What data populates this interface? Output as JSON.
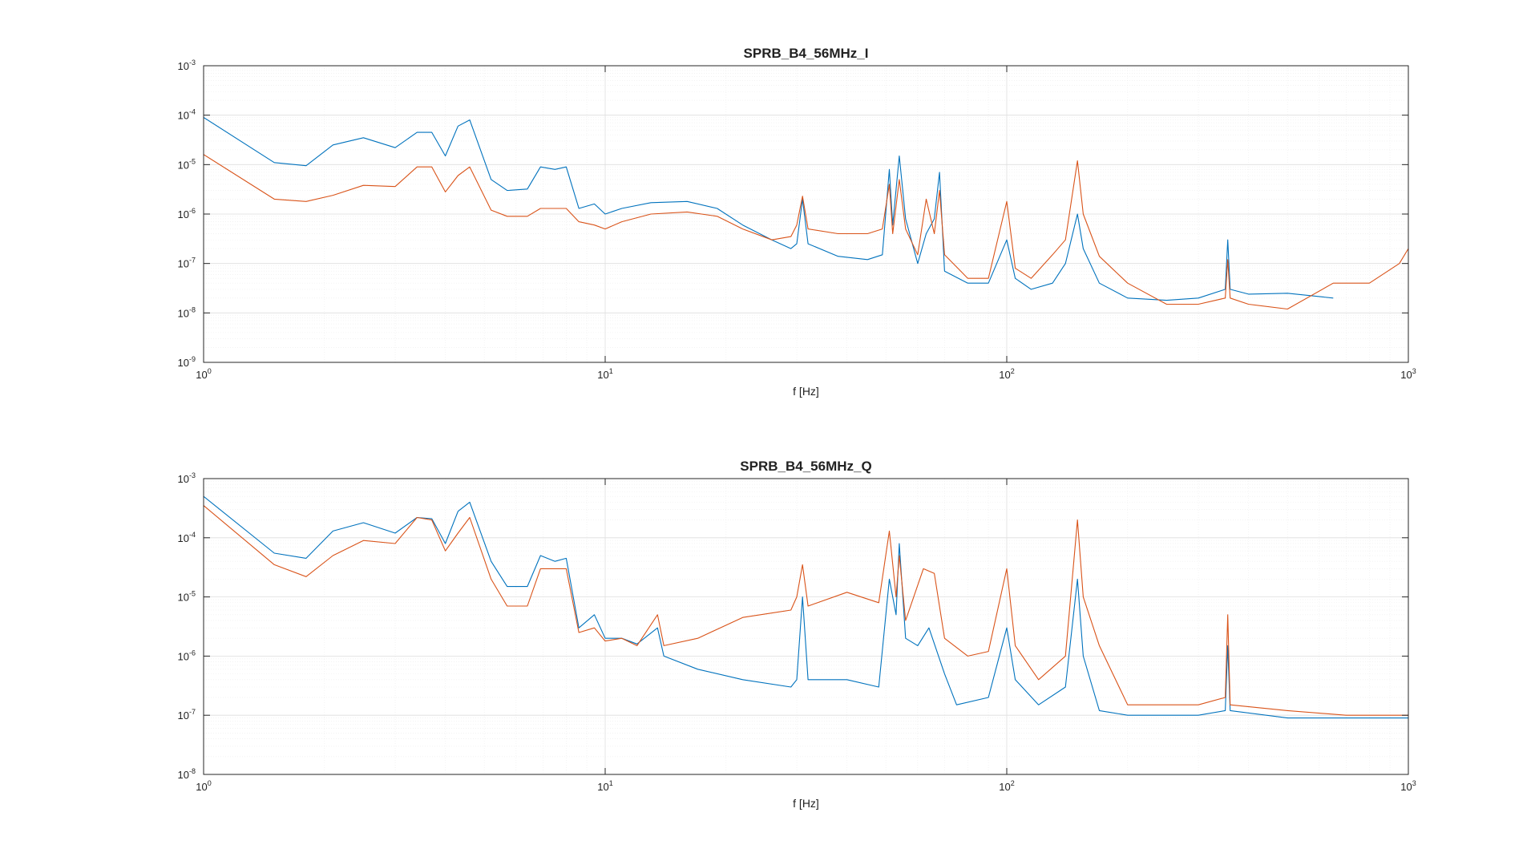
{
  "chart_data": [
    {
      "type": "line",
      "title": "SPRB_B4_56MHz_I",
      "xlabel": "f [Hz]",
      "ylabel": "",
      "xscale": "log",
      "yscale": "log",
      "xlim": [
        1,
        1000
      ],
      "ylim": [
        1e-09,
        0.001
      ],
      "grid": "on",
      "x_ticks": [
        {
          "base": "10",
          "exp": "0"
        },
        {
          "base": "10",
          "exp": "1"
        },
        {
          "base": "10",
          "exp": "2"
        },
        {
          "base": "10",
          "exp": "3"
        }
      ],
      "y_ticks": [
        {
          "base": "10",
          "exp": "-9"
        },
        {
          "base": "10",
          "exp": "-8"
        },
        {
          "base": "10",
          "exp": "-7"
        },
        {
          "base": "10",
          "exp": "-6"
        },
        {
          "base": "10",
          "exp": "-5"
        },
        {
          "base": "10",
          "exp": "-4"
        },
        {
          "base": "10",
          "exp": "-3"
        }
      ],
      "series": [
        {
          "color": "#0072bd",
          "points": [
            [
              1,
              9e-05
            ],
            [
              1.5,
              1.1e-05
            ],
            [
              1.8,
              9.5e-06
            ],
            [
              2.1,
              2.5e-05
            ],
            [
              2.5,
              3.5e-05
            ],
            [
              3,
              2.2e-05
            ],
            [
              3.4,
              4.5e-05
            ],
            [
              3.7,
              4.5e-05
            ],
            [
              4,
              1.5e-05
            ],
            [
              4.3,
              6e-05
            ],
            [
              4.6,
              8e-05
            ],
            [
              5.2,
              5e-06
            ],
            [
              5.7,
              3e-06
            ],
            [
              6.4,
              3.2e-06
            ],
            [
              6.9,
              9e-06
            ],
            [
              7.5,
              8e-06
            ],
            [
              8,
              9e-06
            ],
            [
              8.6,
              1.3e-06
            ],
            [
              9.4,
              1.6e-06
            ],
            [
              10,
              1e-06
            ],
            [
              11,
              1.3e-06
            ],
            [
              13,
              1.7e-06
            ],
            [
              16,
              1.8e-06
            ],
            [
              19,
              1.3e-06
            ],
            [
              22,
              6e-07
            ],
            [
              26,
              3e-07
            ],
            [
              29,
              2e-07
            ],
            [
              30,
              2.5e-07
            ],
            [
              31,
              2e-06
            ],
            [
              32,
              2.5e-07
            ],
            [
              38,
              1.4e-07
            ],
            [
              45,
              1.2e-07
            ],
            [
              49,
              1.5e-07
            ],
            [
              51,
              8e-06
            ],
            [
              52,
              6e-07
            ],
            [
              54,
              1.5e-05
            ],
            [
              56,
              8e-07
            ],
            [
              60,
              1e-07
            ],
            [
              63,
              4e-07
            ],
            [
              66,
              8e-07
            ],
            [
              68,
              7e-06
            ],
            [
              70,
              7e-08
            ],
            [
              80,
              4e-08
            ],
            [
              90,
              4e-08
            ],
            [
              100,
              3e-07
            ],
            [
              105,
              5e-08
            ],
            [
              115,
              3e-08
            ],
            [
              130,
              4e-08
            ],
            [
              140,
              1e-07
            ],
            [
              150,
              1e-06
            ],
            [
              155,
              2e-07
            ],
            [
              170,
              4e-08
            ],
            [
              200,
              2e-08
            ],
            [
              250,
              1.8e-08
            ],
            [
              300,
              2e-08
            ],
            [
              350,
              3e-08
            ],
            [
              355,
              3e-07
            ],
            [
              360,
              3e-08
            ],
            [
              400,
              2.4e-08
            ],
            [
              500,
              2.5e-08
            ],
            [
              650,
              2e-08
            ]
          ]
        },
        {
          "color": "#d95319",
          "points": [
            [
              1,
              1.6e-05
            ],
            [
              1.5,
              2e-06
            ],
            [
              1.8,
              1.8e-06
            ],
            [
              2.1,
              2.4e-06
            ],
            [
              2.5,
              3.8e-06
            ],
            [
              3,
              3.6e-06
            ],
            [
              3.4,
              9e-06
            ],
            [
              3.7,
              9e-06
            ],
            [
              4,
              2.8e-06
            ],
            [
              4.3,
              6e-06
            ],
            [
              4.6,
              9e-06
            ],
            [
              5.2,
              1.2e-06
            ],
            [
              5.7,
              9e-07
            ],
            [
              6.4,
              9e-07
            ],
            [
              6.9,
              1.3e-06
            ],
            [
              7.5,
              1.3e-06
            ],
            [
              8,
              1.3e-06
            ],
            [
              8.6,
              7e-07
            ],
            [
              9.4,
              6e-07
            ],
            [
              10,
              5e-07
            ],
            [
              11,
              7e-07
            ],
            [
              13,
              1e-06
            ],
            [
              16,
              1.1e-06
            ],
            [
              19,
              9e-07
            ],
            [
              22,
              5e-07
            ],
            [
              26,
              3e-07
            ],
            [
              29,
              3.5e-07
            ],
            [
              30,
              6e-07
            ],
            [
              31,
              2.3e-06
            ],
            [
              32,
              5e-07
            ],
            [
              38,
              4e-07
            ],
            [
              45,
              4e-07
            ],
            [
              49,
              5e-07
            ],
            [
              51,
              4e-06
            ],
            [
              52,
              4e-07
            ],
            [
              54,
              5e-06
            ],
            [
              56,
              5e-07
            ],
            [
              60,
              1.5e-07
            ],
            [
              63,
              2e-06
            ],
            [
              66,
              4e-07
            ],
            [
              68,
              3e-06
            ],
            [
              70,
              1.5e-07
            ],
            [
              80,
              5e-08
            ],
            [
              90,
              5e-08
            ],
            [
              100,
              1.8e-06
            ],
            [
              105,
              8e-08
            ],
            [
              115,
              5e-08
            ],
            [
              130,
              1.5e-07
            ],
            [
              140,
              3e-07
            ],
            [
              150,
              1.2e-05
            ],
            [
              155,
              1e-06
            ],
            [
              170,
              1.4e-07
            ],
            [
              200,
              4e-08
            ],
            [
              250,
              1.5e-08
            ],
            [
              300,
              1.5e-08
            ],
            [
              350,
              2e-08
            ],
            [
              355,
              1.2e-07
            ],
            [
              360,
              2e-08
            ],
            [
              400,
              1.5e-08
            ],
            [
              500,
              1.2e-08
            ],
            [
              650,
              4e-08
            ],
            [
              800,
              4e-08
            ],
            [
              950,
              1e-07
            ],
            [
              1000,
              2e-07
            ]
          ]
        }
      ]
    },
    {
      "type": "line",
      "title": "SPRB_B4_56MHz_Q",
      "xlabel": "f [Hz]",
      "ylabel": "",
      "xscale": "log",
      "yscale": "log",
      "xlim": [
        1,
        1000
      ],
      "ylim": [
        1e-08,
        0.001
      ],
      "grid": "on",
      "x_ticks": [
        {
          "base": "10",
          "exp": "0"
        },
        {
          "base": "10",
          "exp": "1"
        },
        {
          "base": "10",
          "exp": "2"
        },
        {
          "base": "10",
          "exp": "3"
        }
      ],
      "y_ticks": [
        {
          "base": "10",
          "exp": "-8"
        },
        {
          "base": "10",
          "exp": "-7"
        },
        {
          "base": "10",
          "exp": "-6"
        },
        {
          "base": "10",
          "exp": "-5"
        },
        {
          "base": "10",
          "exp": "-4"
        },
        {
          "base": "10",
          "exp": "-3"
        }
      ],
      "series": [
        {
          "color": "#0072bd",
          "points": [
            [
              1,
              0.0005
            ],
            [
              1.5,
              5.5e-05
            ],
            [
              1.8,
              4.5e-05
            ],
            [
              2.1,
              0.00013
            ],
            [
              2.5,
              0.00018
            ],
            [
              3,
              0.00012
            ],
            [
              3.4,
              0.00022
            ],
            [
              3.7,
              0.00021
            ],
            [
              4,
              8e-05
            ],
            [
              4.3,
              0.00028
            ],
            [
              4.6,
              0.0004
            ],
            [
              5.2,
              4e-05
            ],
            [
              5.7,
              1.5e-05
            ],
            [
              6.4,
              1.5e-05
            ],
            [
              6.9,
              5e-05
            ],
            [
              7.5,
              4e-05
            ],
            [
              8,
              4.5e-05
            ],
            [
              8.6,
              3e-06
            ],
            [
              9.4,
              5e-06
            ],
            [
              10,
              2e-06
            ],
            [
              11,
              2e-06
            ],
            [
              12,
              1.6e-06
            ],
            [
              13.5,
              3e-06
            ],
            [
              14,
              1e-06
            ],
            [
              17,
              6e-07
            ],
            [
              22,
              4e-07
            ],
            [
              29,
              3e-07
            ],
            [
              30,
              4e-07
            ],
            [
              31,
              1e-05
            ],
            [
              32,
              4e-07
            ],
            [
              40,
              4e-07
            ],
            [
              48,
              3e-07
            ],
            [
              51,
              2e-05
            ],
            [
              53,
              5e-06
            ],
            [
              54,
              8e-05
            ],
            [
              56,
              2e-06
            ],
            [
              60,
              1.5e-06
            ],
            [
              64,
              3e-06
            ],
            [
              70,
              5e-07
            ],
            [
              75,
              1.5e-07
            ],
            [
              90,
              2e-07
            ],
            [
              100,
              3e-06
            ],
            [
              105,
              4e-07
            ],
            [
              120,
              1.5e-07
            ],
            [
              140,
              3e-07
            ],
            [
              150,
              2e-05
            ],
            [
              155,
              1e-06
            ],
            [
              170,
              1.2e-07
            ],
            [
              200,
              1e-07
            ],
            [
              300,
              1e-07
            ],
            [
              350,
              1.2e-07
            ],
            [
              355,
              1.5e-06
            ],
            [
              360,
              1.2e-07
            ],
            [
              500,
              9e-08
            ],
            [
              700,
              9e-08
            ],
            [
              1000,
              9e-08
            ]
          ]
        },
        {
          "color": "#d95319",
          "points": [
            [
              1,
              0.00035
            ],
            [
              1.5,
              3.5e-05
            ],
            [
              1.8,
              2.2e-05
            ],
            [
              2.1,
              5e-05
            ],
            [
              2.5,
              9e-05
            ],
            [
              3,
              8e-05
            ],
            [
              3.4,
              0.00022
            ],
            [
              3.7,
              0.0002
            ],
            [
              4,
              6e-05
            ],
            [
              4.3,
              0.00012
            ],
            [
              4.6,
              0.00022
            ],
            [
              5.2,
              2e-05
            ],
            [
              5.7,
              7e-06
            ],
            [
              6.4,
              7e-06
            ],
            [
              6.9,
              3e-05
            ],
            [
              7.5,
              3e-05
            ],
            [
              8,
              3e-05
            ],
            [
              8.6,
              2.5e-06
            ],
            [
              9.4,
              3e-06
            ],
            [
              10,
              1.8e-06
            ],
            [
              11,
              2e-06
            ],
            [
              12,
              1.5e-06
            ],
            [
              13.5,
              5e-06
            ],
            [
              14,
              1.5e-06
            ],
            [
              17,
              2e-06
            ],
            [
              22,
              4.5e-06
            ],
            [
              29,
              6e-06
            ],
            [
              30,
              1e-05
            ],
            [
              31,
              3.5e-05
            ],
            [
              32,
              7e-06
            ],
            [
              40,
              1.2e-05
            ],
            [
              48,
              8e-06
            ],
            [
              51,
              0.00013
            ],
            [
              53,
              1e-05
            ],
            [
              54,
              5e-05
            ],
            [
              56,
              4e-06
            ],
            [
              62,
              3e-05
            ],
            [
              66,
              2.5e-05
            ],
            [
              70,
              2e-06
            ],
            [
              80,
              1e-06
            ],
            [
              90,
              1.2e-06
            ],
            [
              100,
              3e-05
            ],
            [
              105,
              1.5e-06
            ],
            [
              120,
              4e-07
            ],
            [
              140,
              1e-06
            ],
            [
              150,
              0.0002
            ],
            [
              155,
              1e-05
            ],
            [
              170,
              1.5e-06
            ],
            [
              200,
              1.5e-07
            ],
            [
              300,
              1.5e-07
            ],
            [
              350,
              2e-07
            ],
            [
              355,
              5e-06
            ],
            [
              360,
              1.5e-07
            ],
            [
              500,
              1.2e-07
            ],
            [
              700,
              1e-07
            ],
            [
              1000,
              1e-07
            ]
          ]
        }
      ]
    }
  ]
}
